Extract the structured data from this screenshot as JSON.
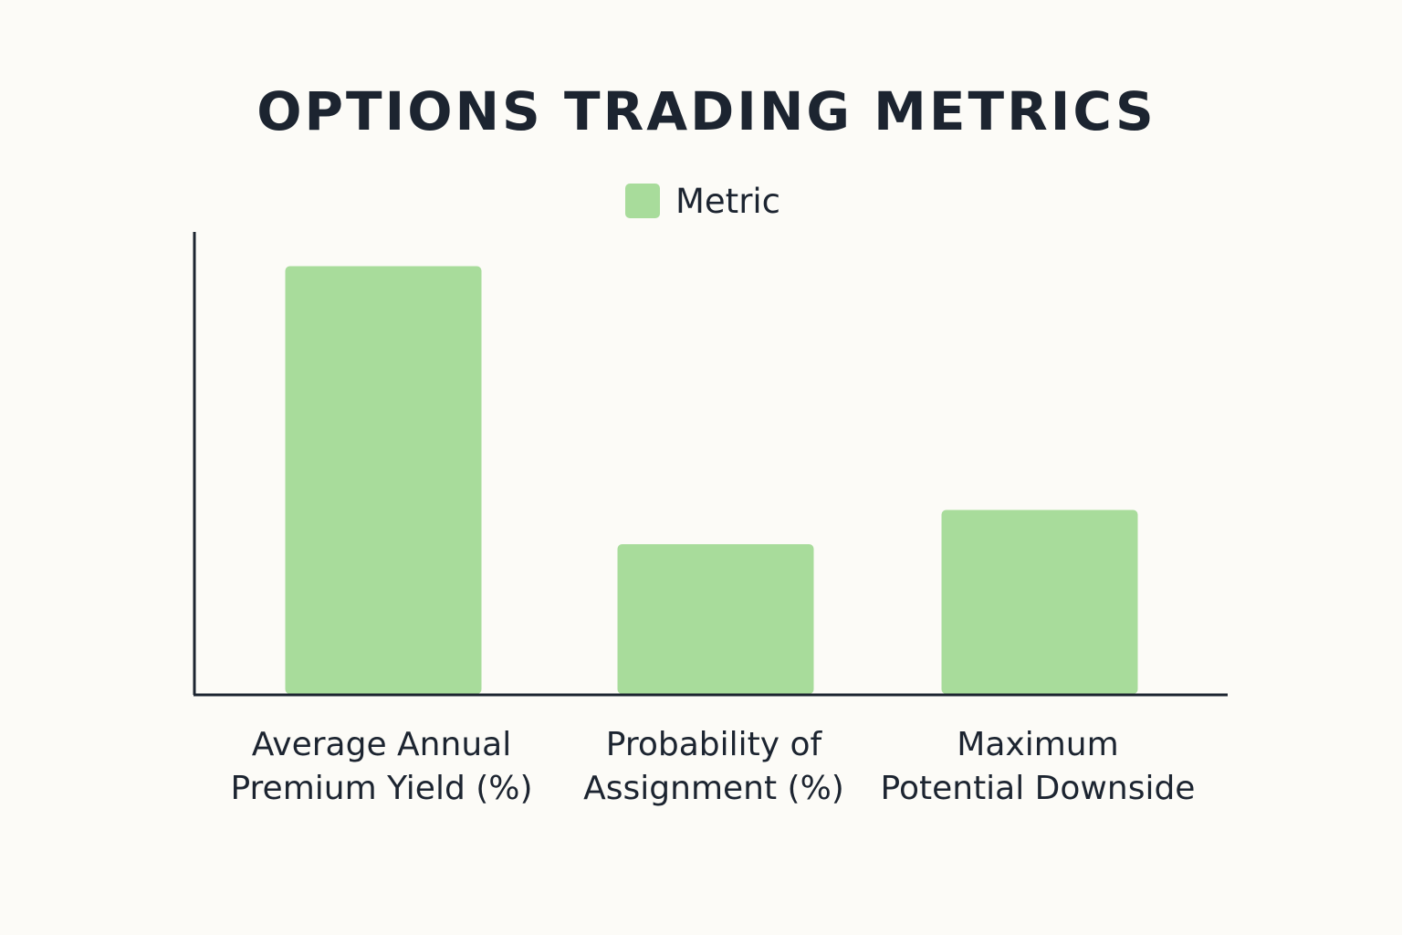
{
  "chart_data": {
    "type": "bar",
    "title": "OPTIONS TRADING METRICS",
    "xlabel": "",
    "ylabel": "",
    "categories": [
      [
        "Average Annual",
        "Premium Yield (%)"
      ],
      [
        "Probability of",
        "Assignment (%)"
      ],
      [
        "Maximum",
        "Potential Downside"
      ]
    ],
    "series": [
      {
        "name": "Metric",
        "values": [
          100,
          35,
          43
        ]
      }
    ],
    "ylim": [
      0,
      108
    ],
    "grid": false,
    "legend_position": "top-center"
  },
  "colors": {
    "background": "#fcfbf7",
    "bar": "#a8dc9b",
    "text": "#1c2430",
    "axis": "#1c2430"
  }
}
